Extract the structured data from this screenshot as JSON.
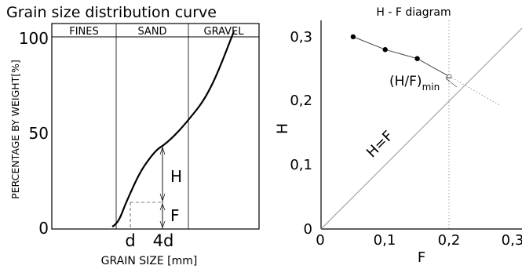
{
  "left_panel": {
    "title": "Grain size distribution curve",
    "ylabel": "PERCENTAGE BY WEIGHT[%]",
    "xlabel": "GRAIN SIZE [mm]",
    "zones": [
      "FINES",
      "SAND",
      "GRAVEL"
    ],
    "y_ticks": [
      "100",
      "50",
      "0"
    ],
    "markers": {
      "d": "d",
      "four_d": "4d",
      "H": "H",
      "F": "F"
    }
  },
  "right_panel": {
    "title": "H - F diagram",
    "ylabel": "H",
    "xlabel": "F",
    "x_ticks": [
      "0",
      "0,1",
      "0,2",
      "0,3"
    ],
    "y_ticks": [
      "0",
      "0,1",
      "0,2",
      "0,3"
    ],
    "line_label": "H=F",
    "min_label_main": "(H/F)",
    "min_label_sub": "min"
  },
  "chart_data": {
    "type": "scatter",
    "xlabel": "F",
    "ylabel": "H",
    "xlim": [
      0,
      0.3
    ],
    "ylim": [
      0,
      0.3
    ],
    "series": [
      {
        "values": [
          [
            0.05,
            0.3
          ],
          [
            0.1,
            0.28
          ],
          [
            0.15,
            0.266
          ]
        ]
      },
      {
        "values": [
          [
            0.2,
            0.238
          ]
        ]
      }
    ]
  }
}
